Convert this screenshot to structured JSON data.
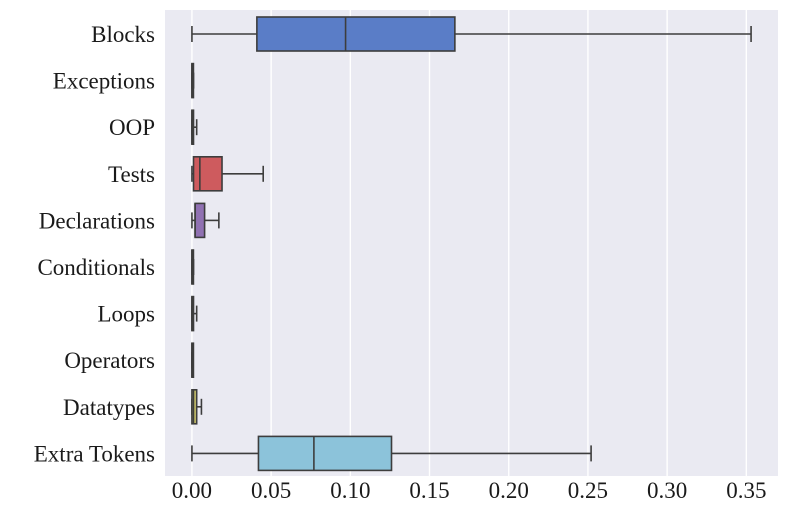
{
  "chart_data": {
    "type": "boxplot",
    "orientation": "horizontal",
    "title": "",
    "xlabel": "",
    "ylabel": "",
    "xlim": [
      -0.017,
      0.37
    ],
    "x_ticks": [
      "0.00",
      "0.05",
      "0.10",
      "0.15",
      "0.20",
      "0.25",
      "0.30",
      "0.35"
    ],
    "x_tick_values": [
      0,
      0.05,
      0.1,
      0.15,
      0.2,
      0.25,
      0.3,
      0.35
    ],
    "grid": true,
    "background_color": "#EAEAF2",
    "categories": [
      "Blocks",
      "Exceptions",
      "OOP",
      "Tests",
      "Declarations",
      "Conditionals",
      "Loops",
      "Operators",
      "Datatypes",
      "Extra Tokens"
    ],
    "boxes": [
      {
        "category": "Blocks",
        "whisker_low": 0.0,
        "q1": 0.041,
        "median": 0.097,
        "q3": 0.166,
        "whisker_high": 0.353,
        "color": "#5A7DC7"
      },
      {
        "category": "Exceptions",
        "whisker_low": 0.0,
        "q1": 0.0,
        "median": 0.0,
        "q3": 0.0005,
        "whisker_high": 0.001,
        "color": "#E08A4B"
      },
      {
        "category": "OOP",
        "whisker_low": 0.0,
        "q1": 0.0,
        "median": 0.0,
        "q3": 0.001,
        "whisker_high": 0.003,
        "color": "#5BAE5F"
      },
      {
        "category": "Tests",
        "whisker_low": 0.0,
        "q1": 0.001,
        "median": 0.005,
        "q3": 0.019,
        "whisker_high": 0.045,
        "color": "#CE5B5E"
      },
      {
        "category": "Declarations",
        "whisker_low": 0.0,
        "q1": 0.002,
        "median": 0.002,
        "q3": 0.008,
        "whisker_high": 0.017,
        "color": "#9071B2"
      },
      {
        "category": "Conditionals",
        "whisker_low": 0.0,
        "q1": 0.0,
        "median": 0.0,
        "q3": 0.0005,
        "whisker_high": 0.001,
        "color": "#8C6A55"
      },
      {
        "category": "Loops",
        "whisker_low": 0.0,
        "q1": 0.0,
        "median": 0.0,
        "q3": 0.001,
        "whisker_high": 0.003,
        "color": "#D98BC4"
      },
      {
        "category": "Operators",
        "whisker_low": 0.0,
        "q1": 0.0,
        "median": 0.0,
        "q3": 0.0,
        "whisker_high": 0.0,
        "color": "#8C8C8C"
      },
      {
        "category": "Datatypes",
        "whisker_low": 0.0,
        "q1": 0.0,
        "median": 0.001,
        "q3": 0.003,
        "whisker_high": 0.006,
        "color": "#C9C36A"
      },
      {
        "category": "Extra Tokens",
        "whisker_low": 0.0,
        "q1": 0.042,
        "median": 0.077,
        "q3": 0.126,
        "whisker_high": 0.252,
        "color": "#8CC3DA"
      }
    ]
  }
}
